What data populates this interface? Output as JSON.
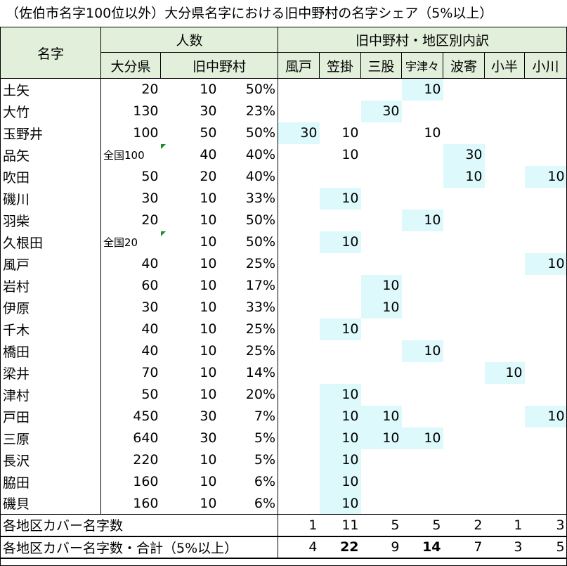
{
  "title": "（佐伯市名字100位以外）大分県名字における旧中野村の名字シェア（5%以上）",
  "headers": {
    "name": "名字",
    "count_group": "人数",
    "oita": "大分県",
    "nakano": "旧中野村",
    "district_group": "旧中野村・地区別内訳",
    "districts": [
      "風戸",
      "笠掛",
      "三股",
      "宇津々",
      "波寄",
      "小半",
      "小川"
    ]
  },
  "rows": [
    {
      "name": "土矢",
      "oita": "20",
      "nakano": "10",
      "share": "50%",
      "d": [
        "",
        "",
        "",
        "10",
        "",
        "",
        ""
      ],
      "hl": [
        false,
        false,
        false,
        true,
        false,
        false,
        false
      ]
    },
    {
      "name": "大竹",
      "oita": "130",
      "nakano": "30",
      "share": "23%",
      "d": [
        "",
        "",
        "30",
        "",
        "",
        "",
        ""
      ],
      "hl": [
        false,
        false,
        true,
        false,
        false,
        false,
        false
      ]
    },
    {
      "name": "玉野井",
      "oita": "100",
      "nakano": "50",
      "share": "50%",
      "d": [
        "30",
        "10",
        "",
        "10",
        "",
        "",
        ""
      ],
      "hl": [
        true,
        false,
        false,
        false,
        false,
        false,
        false
      ]
    },
    {
      "name": "品矢",
      "oita": "全国100",
      "oita_small": true,
      "nakano": "40",
      "note": true,
      "share": "40%",
      "d": [
        "",
        "10",
        "",
        "",
        "30",
        "",
        ""
      ],
      "hl": [
        false,
        false,
        false,
        false,
        true,
        false,
        false
      ]
    },
    {
      "name": "吹田",
      "oita": "50",
      "nakano": "20",
      "share": "40%",
      "d": [
        "",
        "",
        "",
        "",
        "10",
        "",
        "10"
      ],
      "hl": [
        false,
        false,
        false,
        false,
        true,
        false,
        true
      ]
    },
    {
      "name": "磯川",
      "oita": "30",
      "nakano": "10",
      "share": "33%",
      "d": [
        "",
        "10",
        "",
        "",
        "",
        "",
        ""
      ],
      "hl": [
        false,
        true,
        false,
        false,
        false,
        false,
        false
      ]
    },
    {
      "name": "羽柴",
      "oita": "20",
      "nakano": "10",
      "share": "50%",
      "d": [
        "",
        "",
        "",
        "10",
        "",
        "",
        ""
      ],
      "hl": [
        false,
        false,
        false,
        true,
        false,
        false,
        false
      ]
    },
    {
      "name": "久根田",
      "oita": "全国20",
      "oita_small": true,
      "nakano": "10",
      "note": true,
      "share": "50%",
      "d": [
        "",
        "10",
        "",
        "",
        "",
        "",
        ""
      ],
      "hl": [
        false,
        true,
        false,
        false,
        false,
        false,
        false
      ]
    },
    {
      "name": "風戸",
      "oita": "40",
      "nakano": "10",
      "share": "25%",
      "d": [
        "",
        "",
        "",
        "",
        "",
        "",
        "10"
      ],
      "hl": [
        false,
        false,
        false,
        false,
        false,
        false,
        true
      ]
    },
    {
      "name": "岩村",
      "oita": "60",
      "nakano": "10",
      "share": "17%",
      "d": [
        "",
        "",
        "10",
        "",
        "",
        "",
        ""
      ],
      "hl": [
        false,
        false,
        true,
        false,
        false,
        false,
        false
      ]
    },
    {
      "name": "伊原",
      "oita": "30",
      "nakano": "10",
      "share": "33%",
      "d": [
        "",
        "",
        "10",
        "",
        "",
        "",
        ""
      ],
      "hl": [
        false,
        false,
        true,
        false,
        false,
        false,
        false
      ]
    },
    {
      "name": "千木",
      "oita": "40",
      "nakano": "10",
      "share": "25%",
      "d": [
        "",
        "10",
        "",
        "",
        "",
        "",
        ""
      ],
      "hl": [
        false,
        true,
        false,
        false,
        false,
        false,
        false
      ]
    },
    {
      "name": "橋田",
      "oita": "40",
      "nakano": "10",
      "share": "25%",
      "d": [
        "",
        "",
        "",
        "10",
        "",
        "",
        ""
      ],
      "hl": [
        false,
        false,
        false,
        true,
        false,
        false,
        false
      ]
    },
    {
      "name": "梁井",
      "oita": "70",
      "nakano": "10",
      "share": "14%",
      "d": [
        "",
        "",
        "",
        "",
        "",
        "10",
        ""
      ],
      "hl": [
        false,
        false,
        false,
        false,
        false,
        true,
        false
      ]
    },
    {
      "name": "津村",
      "oita": "50",
      "nakano": "10",
      "share": "20%",
      "d": [
        "",
        "10",
        "",
        "",
        "",
        "",
        ""
      ],
      "hl": [
        false,
        true,
        false,
        false,
        false,
        false,
        false
      ]
    },
    {
      "name": "戸田",
      "oita": "450",
      "nakano": "30",
      "share": "7%",
      "d": [
        "",
        "10",
        "10",
        "",
        "",
        "",
        "10"
      ],
      "hl": [
        false,
        true,
        true,
        false,
        false,
        false,
        true
      ]
    },
    {
      "name": "三原",
      "oita": "640",
      "nakano": "30",
      "share": "5%",
      "d": [
        "",
        "10",
        "10",
        "10",
        "",
        "",
        ""
      ],
      "hl": [
        false,
        true,
        true,
        true,
        false,
        false,
        false
      ]
    },
    {
      "name": "長沢",
      "oita": "220",
      "nakano": "10",
      "share": "5%",
      "d": [
        "",
        "10",
        "",
        "",
        "",
        "",
        ""
      ],
      "hl": [
        false,
        true,
        false,
        false,
        false,
        false,
        false
      ]
    },
    {
      "name": "脇田",
      "oita": "160",
      "nakano": "10",
      "share": "6%",
      "d": [
        "",
        "10",
        "",
        "",
        "",
        "",
        ""
      ],
      "hl": [
        false,
        true,
        false,
        false,
        false,
        false,
        false
      ]
    },
    {
      "name": "磯貝",
      "oita": "160",
      "nakano": "10",
      "share": "6%",
      "d": [
        "",
        "10",
        "",
        "",
        "",
        "",
        ""
      ],
      "hl": [
        false,
        true,
        false,
        false,
        false,
        false,
        false
      ]
    }
  ],
  "summary1": {
    "label": "各地区カバー名字数",
    "values": [
      "1",
      "11",
      "5",
      "5",
      "2",
      "1",
      "3"
    ]
  },
  "summary2": {
    "label": "各地区カバー名字数・合計（5%以上）",
    "values": [
      "4",
      "22",
      "9",
      "14",
      "7",
      "3",
      "5"
    ],
    "bold": [
      false,
      true,
      false,
      true,
      false,
      false,
      false
    ]
  },
  "colors": {
    "header_bg": "#e2efda",
    "highlight_bg": "#ddf9fb",
    "note_marker": "#1e8a2e"
  }
}
